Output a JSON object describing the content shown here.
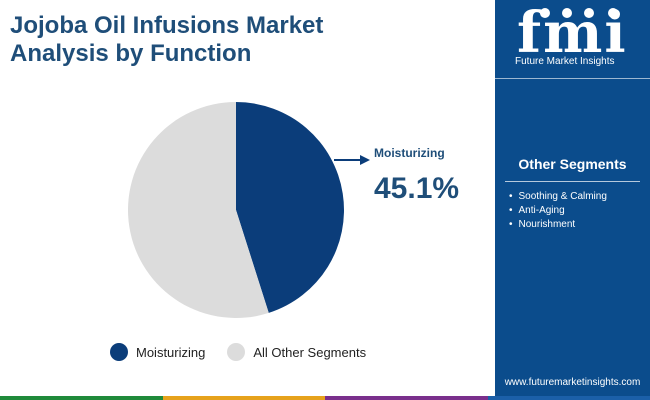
{
  "header": {
    "title_line1": "Jojoba Oil Infusions Market",
    "title_line2": "Analysis by Function"
  },
  "chart_data": {
    "type": "pie",
    "title": "Jojoba Oil Infusions Market Analysis by Function",
    "slices": [
      {
        "label": "Moisturizing",
        "value": 45.1,
        "color": "#0b3d7a"
      },
      {
        "label": "All Other Segments",
        "value": 54.9,
        "color": "#dcdcdc"
      }
    ],
    "highlight": {
      "label": "Moisturizing",
      "value_text": "45.1%"
    },
    "legend": [
      "Moisturizing",
      "All Other Segments"
    ],
    "legend_position": "bottom"
  },
  "sidebar": {
    "brand_name": "Future Market Insights",
    "logo_glyphs": "fmi",
    "segments_heading": "Other Segments",
    "segments": [
      "Soothing & Calming",
      "Anti-Aging",
      "Nourishment"
    ],
    "website": "www.futuremarketinsights.com",
    "background": "#0b4c8c"
  },
  "footer": {
    "strip_colors": [
      "#1f8a3a",
      "#e6a21c",
      "#7a2f8c",
      "#1b5fa8"
    ]
  }
}
